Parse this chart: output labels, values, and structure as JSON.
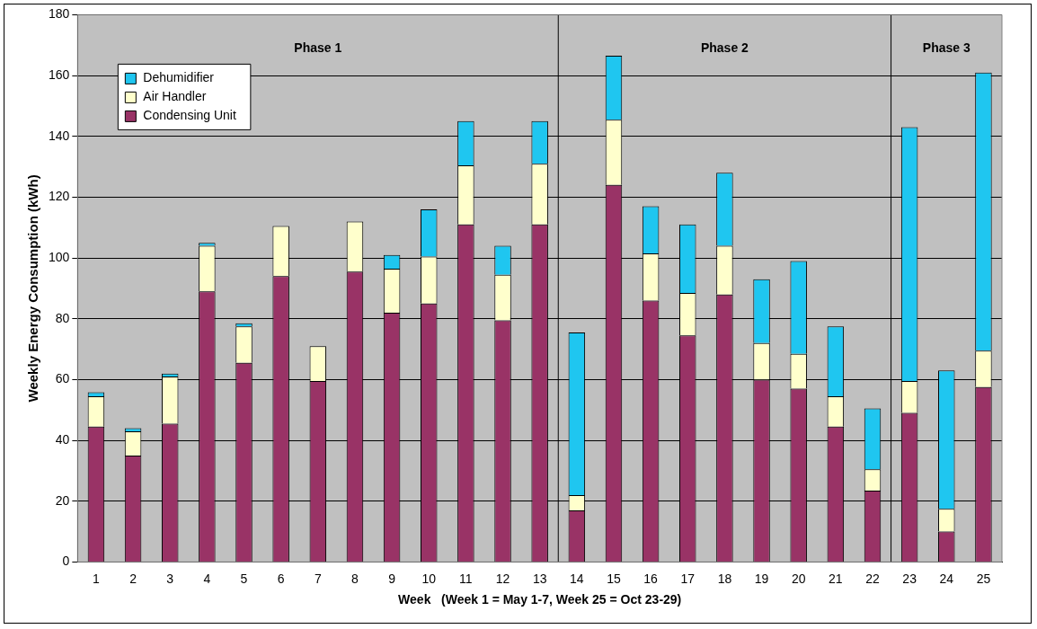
{
  "chart_data": {
    "type": "bar",
    "stacked": true,
    "xlabel": "Week   (Week 1 = May 1-7, Week 25 = Oct 23-29)",
    "ylabel": "Weekly Energy Consumption (kWh)",
    "x": [
      1,
      2,
      3,
      4,
      5,
      6,
      7,
      8,
      9,
      10,
      11,
      12,
      13,
      14,
      15,
      16,
      17,
      18,
      19,
      20,
      21,
      22,
      23,
      24,
      25
    ],
    "series": [
      {
        "name": "Condensing Unit",
        "color": "#993366",
        "values": [
          44.5,
          35,
          45.5,
          89,
          65.5,
          94,
          59.5,
          95.5,
          82,
          85,
          111,
          79.5,
          111,
          17,
          124,
          86,
          74.5,
          88,
          60,
          57,
          44.5,
          23.5,
          49,
          10,
          57.5
        ]
      },
      {
        "name": "Air Handler",
        "color": "#ffffcc",
        "values": [
          10,
          8,
          15.5,
          15,
          12,
          16.5,
          11.5,
          16.5,
          14.5,
          15.5,
          19.5,
          15,
          20,
          5,
          21.5,
          15.5,
          14,
          16,
          12,
          11.5,
          10,
          7,
          10.5,
          7.5,
          12
        ]
      },
      {
        "name": "Dehumidifier",
        "color": "#1fc6f0",
        "values": [
          1.3,
          1,
          1,
          1,
          1,
          0,
          0,
          0,
          4.5,
          15.5,
          14.5,
          9.5,
          14,
          53.5,
          21,
          15.5,
          22.5,
          24,
          21,
          30.5,
          23,
          20,
          83.5,
          45.5,
          91.5
        ]
      }
    ],
    "xlim": [
      0.5,
      25.5
    ],
    "xticks": [
      1,
      2,
      3,
      4,
      5,
      6,
      7,
      8,
      9,
      10,
      11,
      12,
      13,
      14,
      15,
      16,
      17,
      18,
      19,
      20,
      21,
      22,
      23,
      24,
      25
    ],
    "ylim": [
      0,
      180
    ],
    "yticks": [
      0,
      20,
      40,
      60,
      80,
      100,
      120,
      140,
      160,
      180
    ],
    "ref_lines": [
      {
        "axis": "x",
        "value": 13.5,
        "color": "#000000"
      },
      {
        "axis": "x",
        "value": 22.5,
        "color": "#000000"
      }
    ],
    "bands": [
      {
        "axis": "x",
        "from": 0.5,
        "to": 13.5,
        "label": "Phase 1",
        "color": "#c0c0c0"
      },
      {
        "axis": "x",
        "from": 13.5,
        "to": 22.5,
        "label": "Phase 2",
        "color": "#c0c0c0"
      },
      {
        "axis": "x",
        "from": 22.5,
        "to": 25.5,
        "label": "Phase 3",
        "color": "#c0c0c0"
      }
    ],
    "grid": "y",
    "legend": "top left"
  }
}
